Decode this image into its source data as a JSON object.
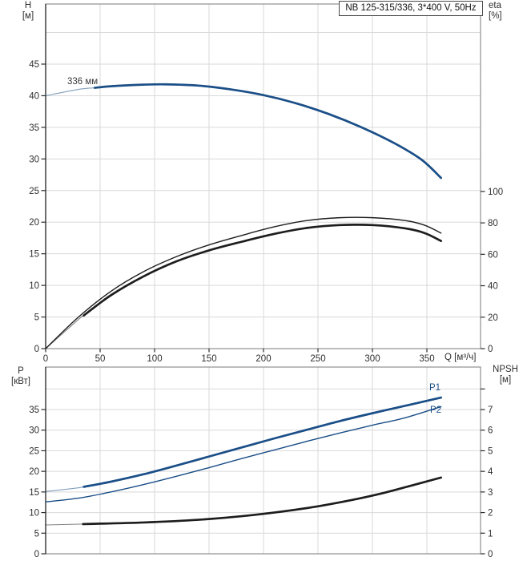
{
  "title": "NB 125-315/336, 3*400 V, 50Hz",
  "colors": {
    "curve_blue": "#1a4e87",
    "curve_black": "#1d1d1d",
    "grid": "#d9d9d9",
    "plot_border": "#8f8f8f",
    "axis_line": "#2b2b2b",
    "tick_text": "#2f2f2f",
    "label_text": "#3a3a3a"
  },
  "chart_data": [
    {
      "id": "head-efficiency",
      "type": "line",
      "title": "NB 125-315/336, 3*400 V, 50Hz",
      "x_axis": {
        "label": "Q [м³/ч]",
        "ticks": [
          0,
          50,
          100,
          150,
          200,
          250,
          300,
          350
        ],
        "range": [
          0,
          399
        ],
        "labels_visible": true
      },
      "left_axis": {
        "label": "H",
        "unit": "[м]",
        "ticks": [
          0,
          5,
          10,
          15,
          20,
          25,
          30,
          35,
          40,
          45
        ],
        "range": [
          0,
          54.5
        ]
      },
      "right_axis": {
        "label": "eta",
        "unit": "[%]",
        "ticks": [
          0,
          20,
          40,
          60,
          80,
          100
        ],
        "range": [
          0,
          219.2
        ]
      },
      "grid": true,
      "legend_position": "none",
      "series": [
        {
          "name": "head-336mm",
          "label": "336 мм",
          "axis": "left",
          "color": "curve_blue",
          "style": "thick",
          "thin_until": 45,
          "points": [
            [
              0,
              40.0
            ],
            [
              30,
              41.0
            ],
            [
              60,
              41.5
            ],
            [
              90,
              41.75
            ],
            [
              110,
              41.8
            ],
            [
              140,
              41.6
            ],
            [
              170,
              41.0
            ],
            [
              200,
              40.1
            ],
            [
              230,
              38.8
            ],
            [
              260,
              37.1
            ],
            [
              290,
              35.0
            ],
            [
              320,
              32.5
            ],
            [
              345,
              29.9
            ],
            [
              363,
              27.0
            ]
          ]
        },
        {
          "name": "eta-pump",
          "axis": "right",
          "color": "curve_black",
          "style": "thin",
          "points": [
            [
              0,
              0
            ],
            [
              30,
              20
            ],
            [
              60,
              36.5
            ],
            [
              90,
              49
            ],
            [
              120,
              58.5
            ],
            [
              150,
              66
            ],
            [
              180,
              72
            ],
            [
              210,
              77.5
            ],
            [
              240,
              81.5
            ],
            [
              270,
              83.3
            ],
            [
              300,
              83.3
            ],
            [
              330,
              81.5
            ],
            [
              348,
              78.5
            ],
            [
              363,
              73.5
            ]
          ]
        },
        {
          "name": "eta-pump-motor",
          "axis": "right",
          "color": "curve_black",
          "style": "thick",
          "thin_until": 35,
          "points": [
            [
              0,
              0
            ],
            [
              30,
              18.5
            ],
            [
              60,
              34
            ],
            [
              90,
              46
            ],
            [
              120,
              55.5
            ],
            [
              150,
              62.5
            ],
            [
              180,
              68
            ],
            [
              210,
              73
            ],
            [
              240,
              76.8
            ],
            [
              270,
              78.6
            ],
            [
              300,
              78.6
            ],
            [
              330,
              76.5
            ],
            [
              348,
              73.5
            ],
            [
              363,
              68.5
            ]
          ]
        }
      ]
    },
    {
      "id": "power-npsh",
      "type": "line",
      "x_axis": {
        "ticks": [
          0,
          50,
          100,
          150,
          200,
          250,
          300,
          350
        ],
        "range": [
          0,
          399
        ],
        "labels_visible": false
      },
      "left_axis": {
        "label": "P",
        "unit": "[кВт]",
        "ticks": [
          0,
          5,
          10,
          15,
          20,
          25,
          30,
          35
        ],
        "range": [
          0,
          45.3
        ]
      },
      "right_axis": {
        "label": "NPSH",
        "unit": "[м]",
        "ticks": [
          0,
          1,
          2,
          3,
          4,
          5,
          6,
          7
        ],
        "unlabeled_ticks": [
          8
        ],
        "range": [
          0,
          9.06
        ]
      },
      "grid": true,
      "legend_position": "none",
      "series": [
        {
          "name": "P1",
          "label": "P1",
          "axis": "left",
          "color": "curve_blue",
          "style": "thick",
          "thin_until": 35,
          "points": [
            [
              0,
              15.1
            ],
            [
              30,
              16.0
            ],
            [
              60,
              17.5
            ],
            [
              90,
              19.3
            ],
            [
              120,
              21.4
            ],
            [
              150,
              23.6
            ],
            [
              180,
              25.8
            ],
            [
              210,
              28.0
            ],
            [
              240,
              30.1
            ],
            [
              270,
              32.2
            ],
            [
              300,
              34.1
            ],
            [
              330,
              35.9
            ],
            [
              363,
              37.9
            ]
          ]
        },
        {
          "name": "P2",
          "label": "P2",
          "axis": "left",
          "color": "curve_blue",
          "style": "thin",
          "points": [
            [
              0,
              12.6
            ],
            [
              30,
              13.5
            ],
            [
              60,
              15.0
            ],
            [
              90,
              16.8
            ],
            [
              120,
              18.8
            ],
            [
              150,
              20.9
            ],
            [
              180,
              23.1
            ],
            [
              210,
              25.2
            ],
            [
              240,
              27.3
            ],
            [
              270,
              29.3
            ],
            [
              300,
              31.2
            ],
            [
              330,
              33.0
            ],
            [
              363,
              35.7
            ]
          ]
        },
        {
          "name": "NPSH",
          "axis": "right",
          "color": "curve_black",
          "style": "thick",
          "thin_until": 35,
          "points": [
            [
              0,
              1.4
            ],
            [
              40,
              1.45
            ],
            [
              90,
              1.52
            ],
            [
              140,
              1.65
            ],
            [
              190,
              1.88
            ],
            [
              240,
              2.22
            ],
            [
              280,
              2.6
            ],
            [
              310,
              2.95
            ],
            [
              335,
              3.3
            ],
            [
              363,
              3.7
            ]
          ]
        }
      ]
    }
  ]
}
